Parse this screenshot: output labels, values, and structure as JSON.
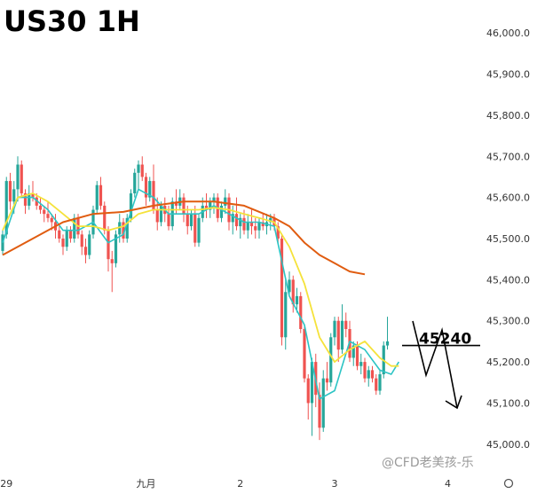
{
  "chart_data": {
    "type": "candlestick",
    "title": "US30 1H",
    "ylim": [
      44950,
      46050
    ],
    "y_ticks": [
      45000,
      45100,
      45200,
      45300,
      45400,
      45500,
      45600,
      45700,
      45800,
      45900,
      46000
    ],
    "y_tick_labels": [
      "45,000.0",
      "45,100.0",
      "45,200.0",
      "45,300.0",
      "45,400.0",
      "45,500.0",
      "45,600.0",
      "45,700.0",
      "45,800.0",
      "45,900.0",
      "46,000.0"
    ],
    "x_ticks": [
      {
        "label": "29",
        "bar": 1
      },
      {
        "label": "九月",
        "bar": 38
      },
      {
        "label": "2",
        "bar": 63
      },
      {
        "label": "3",
        "bar": 88
      },
      {
        "label": "4",
        "bar": 118
      }
    ],
    "up_color": "#26a69a",
    "down_color": "#ef5350",
    "candles": [
      [
        45470,
        45520,
        45460,
        45510
      ],
      [
        45510,
        45650,
        45500,
        45640
      ],
      [
        45640,
        45660,
        45570,
        45590
      ],
      [
        45590,
        45640,
        45560,
        45620
      ],
      [
        45620,
        45700,
        45590,
        45680
      ],
      [
        45680,
        45690,
        45600,
        45610
      ],
      [
        45610,
        45620,
        45560,
        45580
      ],
      [
        45580,
        45630,
        45570,
        45610
      ],
      [
        45610,
        45640,
        45590,
        45600
      ],
      [
        45600,
        45610,
        45570,
        45580
      ],
      [
        45580,
        45600,
        45560,
        45570
      ],
      [
        45570,
        45580,
        45540,
        45560
      ],
      [
        45560,
        45590,
        45540,
        45550
      ],
      [
        45550,
        45560,
        45520,
        45540
      ],
      [
        45540,
        45560,
        45500,
        45520
      ],
      [
        45520,
        45530,
        45490,
        45500
      ],
      [
        45500,
        45510,
        45460,
        45480
      ],
      [
        45480,
        45530,
        45470,
        45520
      ],
      [
        45520,
        45530,
        45490,
        45500
      ],
      [
        45500,
        45560,
        45490,
        45550
      ],
      [
        45550,
        45560,
        45500,
        45510
      ],
      [
        45510,
        45520,
        45460,
        45480
      ],
      [
        45480,
        45500,
        45440,
        45460
      ],
      [
        45460,
        45520,
        45450,
        45510
      ],
      [
        45510,
        45580,
        45500,
        45570
      ],
      [
        45570,
        45640,
        45560,
        45630
      ],
      [
        45630,
        45650,
        45570,
        45580
      ],
      [
        45580,
        45590,
        45510,
        45520
      ],
      [
        45520,
        45530,
        45420,
        45450
      ],
      [
        45450,
        45470,
        45370,
        45440
      ],
      [
        45440,
        45520,
        45430,
        45510
      ],
      [
        45510,
        45560,
        45490,
        45540
      ],
      [
        45540,
        45550,
        45490,
        45500
      ],
      [
        45500,
        45560,
        45490,
        45550
      ],
      [
        45550,
        45620,
        45540,
        45610
      ],
      [
        45610,
        45670,
        45600,
        45660
      ],
      [
        45660,
        45690,
        45620,
        45680
      ],
      [
        45680,
        45700,
        45640,
        45650
      ],
      [
        45650,
        45660,
        45580,
        45600
      ],
      [
        45600,
        45650,
        45590,
        45640
      ],
      [
        45640,
        45680,
        45560,
        45570
      ],
      [
        45570,
        45600,
        45520,
        45540
      ],
      [
        45540,
        45590,
        45530,
        45580
      ],
      [
        45580,
        45600,
        45540,
        45560
      ],
      [
        45560,
        45580,
        45520,
        45530
      ],
      [
        45530,
        45600,
        45520,
        45590
      ],
      [
        45590,
        45620,
        45560,
        45580
      ],
      [
        45580,
        45620,
        45570,
        45600
      ],
      [
        45600,
        45610,
        45540,
        45560
      ],
      [
        45560,
        45580,
        45510,
        45530
      ],
      [
        45530,
        45570,
        45520,
        45560
      ],
      [
        45560,
        45580,
        45480,
        45490
      ],
      [
        45490,
        45560,
        45480,
        45550
      ],
      [
        45550,
        45600,
        45540,
        45580
      ],
      [
        45580,
        45610,
        45550,
        45570
      ],
      [
        45570,
        45600,
        45550,
        45590
      ],
      [
        45590,
        45610,
        45560,
        45600
      ],
      [
        45600,
        45610,
        45540,
        45550
      ],
      [
        45550,
        45590,
        45540,
        45580
      ],
      [
        45580,
        45620,
        45560,
        45600
      ],
      [
        45600,
        45610,
        45520,
        45540
      ],
      [
        45540,
        45580,
        45510,
        45560
      ],
      [
        45560,
        45600,
        45520,
        45530
      ],
      [
        45530,
        45560,
        45500,
        45550
      ],
      [
        45550,
        45570,
        45510,
        45520
      ],
      [
        45520,
        45560,
        45500,
        45540
      ],
      [
        45540,
        45570,
        45510,
        45530
      ],
      [
        45530,
        45550,
        45500,
        45520
      ],
      [
        45520,
        45550,
        45500,
        45540
      ],
      [
        45540,
        45560,
        45520,
        45530
      ],
      [
        45530,
        45560,
        45510,
        45540
      ],
      [
        45540,
        45560,
        45520,
        45550
      ],
      [
        45550,
        45560,
        45520,
        45530
      ],
      [
        45530,
        45540,
        45490,
        45500
      ],
      [
        45500,
        45510,
        45240,
        45260
      ],
      [
        45260,
        45400,
        45230,
        45370
      ],
      [
        45370,
        45420,
        45360,
        45400
      ],
      [
        45400,
        45410,
        45320,
        45340
      ],
      [
        45340,
        45380,
        45320,
        45360
      ],
      [
        45360,
        45370,
        45270,
        45280
      ],
      [
        45280,
        45290,
        45150,
        45160
      ],
      [
        45160,
        45170,
        45060,
        45100
      ],
      [
        45100,
        45210,
        45020,
        45200
      ],
      [
        45200,
        45220,
        45090,
        45120
      ],
      [
        45120,
        45150,
        45010,
        45040
      ],
      [
        45040,
        45180,
        45030,
        45160
      ],
      [
        45160,
        45200,
        45130,
        45150
      ],
      [
        45150,
        45270,
        45140,
        45260
      ],
      [
        45260,
        45310,
        45240,
        45300
      ],
      [
        45300,
        45310,
        45200,
        45230
      ],
      [
        45230,
        45340,
        45220,
        45300
      ],
      [
        45300,
        45320,
        45260,
        45280
      ],
      [
        45280,
        45300,
        45200,
        45210
      ],
      [
        45210,
        45250,
        45190,
        45240
      ],
      [
        45240,
        45250,
        45180,
        45190
      ],
      [
        45190,
        45220,
        45170,
        45200
      ],
      [
        45200,
        45210,
        45150,
        45160
      ],
      [
        45160,
        45190,
        45140,
        45180
      ],
      [
        45180,
        45190,
        45150,
        45160
      ],
      [
        45160,
        45170,
        45120,
        45130
      ],
      [
        45130,
        45180,
        45120,
        45170
      ],
      [
        45170,
        45250,
        45160,
        45240
      ],
      [
        45240,
        45310,
        45230,
        45250
      ]
    ],
    "series": [
      {
        "color": "#2cc4c4",
        "width": 1.6,
        "points": [
          [
            0,
            45490
          ],
          [
            4,
            45600
          ],
          [
            8,
            45600
          ],
          [
            12,
            45570
          ],
          [
            16,
            45520
          ],
          [
            20,
            45520
          ],
          [
            24,
            45540
          ],
          [
            28,
            45490
          ],
          [
            32,
            45510
          ],
          [
            36,
            45620
          ],
          [
            40,
            45600
          ],
          [
            44,
            45560
          ],
          [
            48,
            45560
          ],
          [
            52,
            45560
          ],
          [
            56,
            45580
          ],
          [
            60,
            45560
          ],
          [
            64,
            45540
          ],
          [
            68,
            45540
          ],
          [
            72,
            45530
          ],
          [
            76,
            45360
          ],
          [
            80,
            45290
          ],
          [
            84,
            45110
          ],
          [
            88,
            45130
          ],
          [
            92,
            45250
          ],
          [
            96,
            45230
          ],
          [
            100,
            45180
          ],
          [
            103,
            45170
          ],
          [
            105,
            45200
          ]
        ]
      },
      {
        "color": "#f5e23b",
        "width": 1.8,
        "points": [
          [
            0,
            45520
          ],
          [
            4,
            45600
          ],
          [
            8,
            45610
          ],
          [
            12,
            45590
          ],
          [
            16,
            45560
          ],
          [
            20,
            45530
          ],
          [
            24,
            45530
          ],
          [
            28,
            45520
          ],
          [
            32,
            45530
          ],
          [
            36,
            45560
          ],
          [
            40,
            45570
          ],
          [
            44,
            45570
          ],
          [
            48,
            45570
          ],
          [
            52,
            45570
          ],
          [
            56,
            45575
          ],
          [
            60,
            45570
          ],
          [
            64,
            45560
          ],
          [
            68,
            45550
          ],
          [
            72,
            45540
          ],
          [
            76,
            45480
          ],
          [
            80,
            45390
          ],
          [
            84,
            45260
          ],
          [
            88,
            45200
          ],
          [
            92,
            45230
          ],
          [
            96,
            45250
          ],
          [
            100,
            45210
          ],
          [
            103,
            45190
          ],
          [
            105,
            45190
          ]
        ]
      },
      {
        "color": "#e05c10",
        "width": 2.0,
        "points": [
          [
            0,
            45460
          ],
          [
            8,
            45500
          ],
          [
            16,
            45540
          ],
          [
            24,
            45560
          ],
          [
            32,
            45565
          ],
          [
            40,
            45580
          ],
          [
            48,
            45590
          ],
          [
            56,
            45590
          ],
          [
            64,
            45580
          ],
          [
            72,
            45550
          ],
          [
            76,
            45530
          ],
          [
            80,
            45490
          ],
          [
            84,
            45460
          ],
          [
            88,
            45440
          ],
          [
            92,
            45420
          ],
          [
            96,
            45413
          ]
        ]
      }
    ],
    "annotation": {
      "label": "45240",
      "level": 45240
    },
    "watermark": "@CFD老美孩-乐"
  }
}
